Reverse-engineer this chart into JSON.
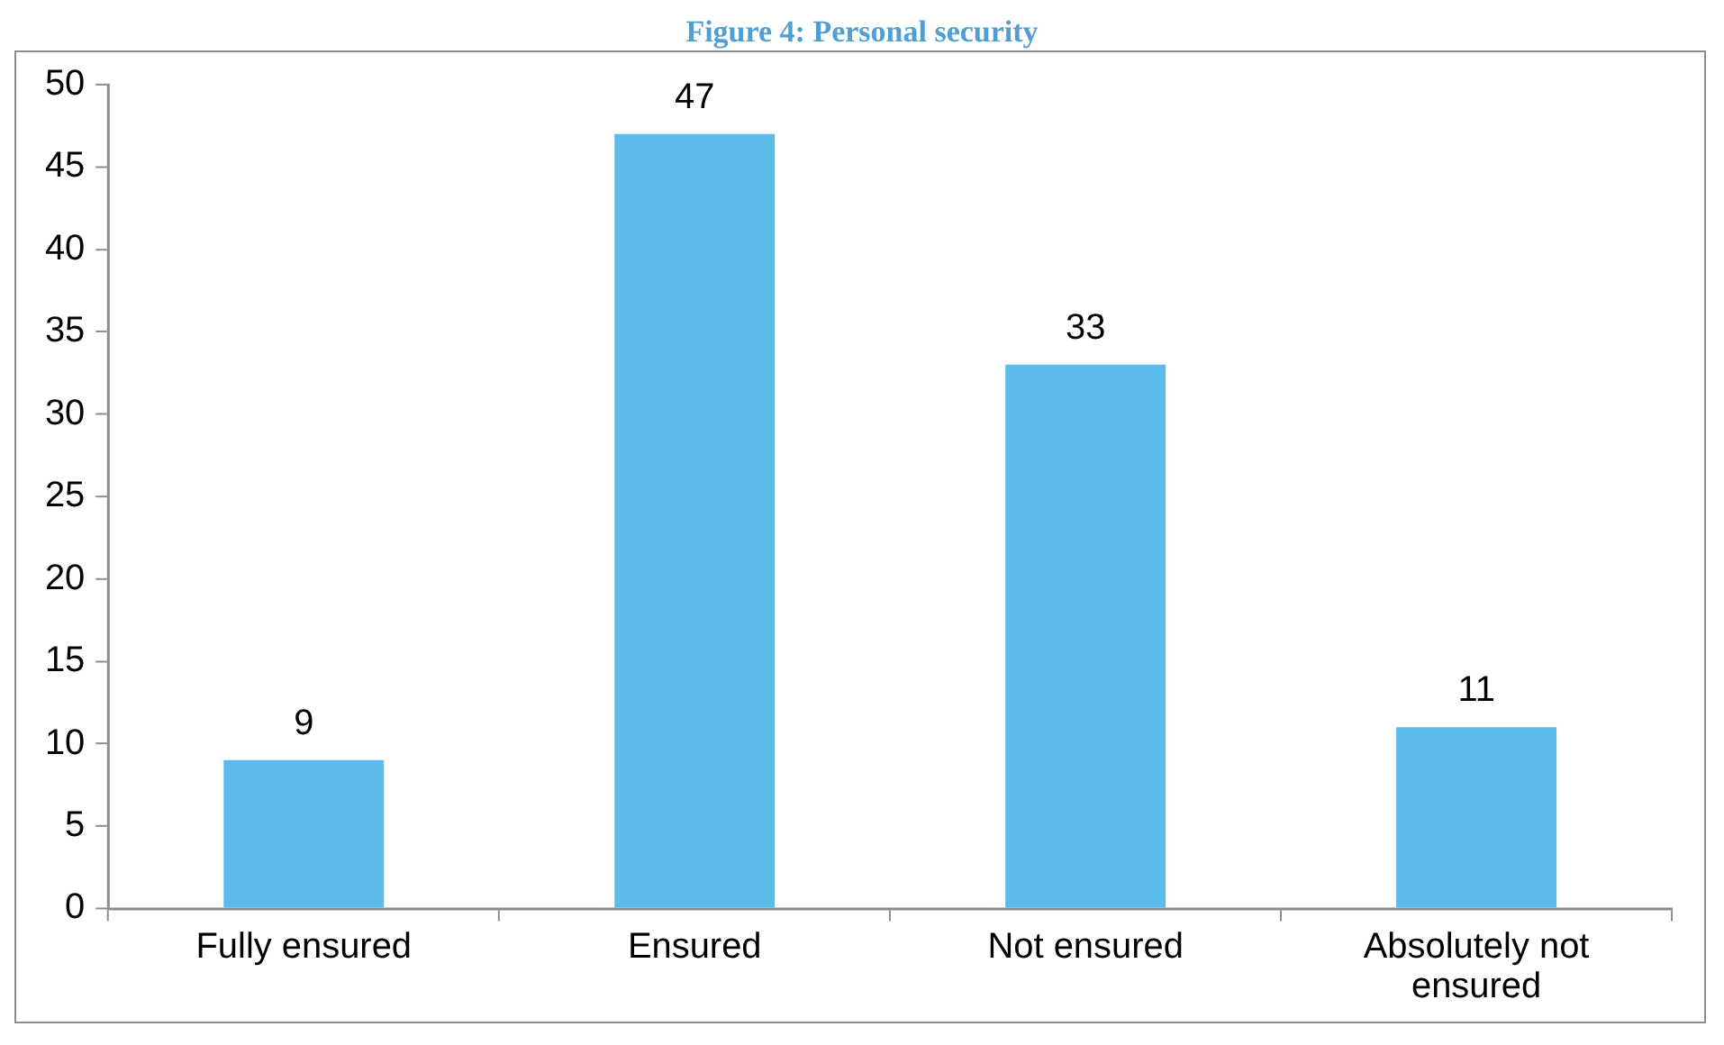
{
  "chart_data": {
    "type": "bar",
    "title": "Figure 4: Personal security",
    "categories": [
      "Fully ensured",
      "Ensured",
      "Not ensured",
      "Absolutely not ensured"
    ],
    "values": [
      9,
      47,
      33,
      11
    ],
    "color": "#5bbcec",
    "ylim": [
      0,
      50
    ],
    "yticks": [
      0,
      5,
      10,
      15,
      20,
      25,
      30,
      35,
      40,
      45,
      50
    ],
    "data_labels": true,
    "grid": false,
    "legend": false
  }
}
